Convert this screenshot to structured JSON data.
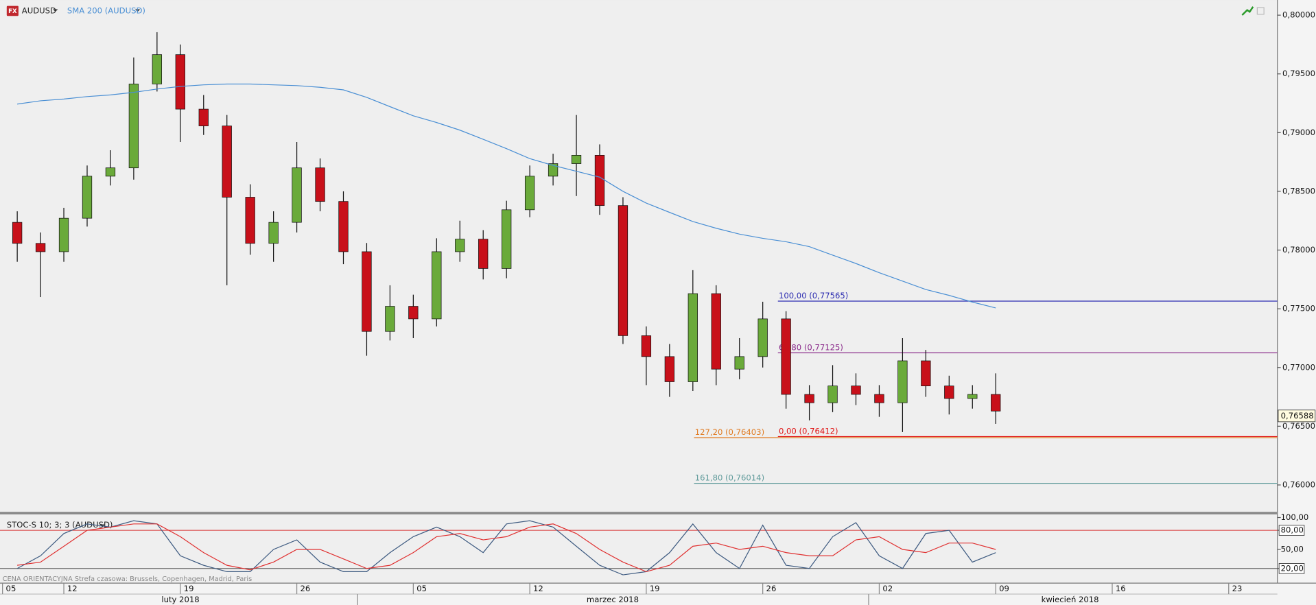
{
  "chart_data": [
    {
      "type": "candlestick",
      "badge": "FX",
      "title": "AUDUSD",
      "x": [
        3,
        4,
        5,
        6,
        7,
        8,
        9,
        10,
        11,
        12,
        13,
        14,
        15,
        16,
        17,
        18,
        19,
        20,
        21,
        22,
        23,
        24,
        25,
        26,
        27,
        28,
        29,
        30,
        31,
        32,
        33,
        34,
        35,
        36,
        37,
        38,
        39,
        40,
        41,
        42,
        43,
        44,
        45
      ],
      "open": [
        0.78236,
        0.78057,
        0.77986,
        0.78271,
        0.78629,
        0.787,
        0.79414,
        0.79664,
        0.792,
        0.79057,
        0.7845,
        0.78057,
        0.78236,
        0.787,
        0.78414,
        0.77986,
        0.77307,
        0.77521,
        0.77414,
        0.77986,
        0.78093,
        0.77843,
        0.78343,
        0.78629,
        0.78736,
        0.78807,
        0.78379,
        0.77271,
        0.77093,
        0.76879,
        0.77629,
        0.76986,
        0.77093,
        0.77414,
        0.76771,
        0.767,
        0.76843,
        0.76771,
        0.767,
        0.77057,
        0.76843,
        0.76736,
        0.76771
      ],
      "high": [
        0.7833,
        0.7815,
        0.7836,
        0.7872,
        0.7885,
        0.7964,
        0.79855,
        0.7975,
        0.7932,
        0.7915,
        0.7856,
        0.7833,
        0.7892,
        0.7878,
        0.785,
        0.7806,
        0.777,
        0.7762,
        0.781,
        0.7825,
        0.7817,
        0.7842,
        0.7872,
        0.7882,
        0.7915,
        0.789,
        0.7845,
        0.7735,
        0.772,
        0.77829,
        0.777,
        0.7725,
        0.7756,
        0.7748,
        0.7685,
        0.7702,
        0.7695,
        0.7685,
        0.7725,
        0.7715,
        0.7693,
        0.7685,
        0.7695
      ],
      "low": [
        0.779,
        0.776,
        0.779,
        0.782,
        0.7855,
        0.786,
        0.7935,
        0.7892,
        0.7898,
        0.777,
        0.7796,
        0.779,
        0.7815,
        0.7833,
        0.7788,
        0.771,
        0.7723,
        0.7725,
        0.7735,
        0.779,
        0.7775,
        0.7776,
        0.7828,
        0.7855,
        0.7846,
        0.783,
        0.772,
        0.7685,
        0.7675,
        0.768,
        0.7685,
        0.769,
        0.77,
        0.7665,
        0.7655,
        0.7662,
        0.7668,
        0.7658,
        0.7645,
        0.7675,
        0.766,
        0.7665,
        0.7652
      ],
      "close": [
        0.78057,
        0.77986,
        0.78271,
        0.78629,
        0.787,
        0.79414,
        0.79664,
        0.792,
        0.79057,
        0.7845,
        0.78057,
        0.78236,
        0.787,
        0.78414,
        0.77986,
        0.77307,
        0.77521,
        0.77414,
        0.77986,
        0.78093,
        0.77843,
        0.78343,
        0.78629,
        0.78736,
        0.78807,
        0.78379,
        0.77271,
        0.77093,
        0.76879,
        0.77629,
        0.76986,
        0.77093,
        0.77414,
        0.76771,
        0.767,
        0.76843,
        0.76771,
        0.767,
        0.77057,
        0.76843,
        0.76736,
        0.76771,
        0.76629
      ],
      "up_color": "#6aaa3a",
      "down_color": "#c8101a",
      "series": [
        {
          "name": "SMA 200 (AUDUSD)",
          "color": "#4a8fd4",
          "values": [
            0.79243,
            0.79271,
            0.79286,
            0.79307,
            0.79321,
            0.79343,
            0.79371,
            0.79393,
            0.79407,
            0.79414,
            0.79414,
            0.79407,
            0.794,
            0.79386,
            0.79364,
            0.793,
            0.79221,
            0.79143,
            0.79086,
            0.79021,
            0.78943,
            0.78864,
            0.78779,
            0.78721,
            0.78671,
            0.78621,
            0.785,
            0.784,
            0.78321,
            0.78243,
            0.78186,
            0.78136,
            0.781,
            0.78071,
            0.78029,
            0.77957,
            0.77886,
            0.77807,
            0.77736,
            0.77664,
            0.77614,
            0.77557,
            0.77507
          ]
        }
      ],
      "ylim": [
        0.75771,
        0.80129
      ],
      "yticks": [
        {
          "value": 0.76,
          "label": "0,76000"
        },
        {
          "value": 0.765,
          "label": "0,76500"
        },
        {
          "value": 0.77,
          "label": "0,77000"
        },
        {
          "value": 0.775,
          "label": "0,77500"
        },
        {
          "value": 0.78,
          "label": "0,78000"
        },
        {
          "value": 0.785,
          "label": "0,78500"
        },
        {
          "value": 0.79,
          "label": "0,79000"
        },
        {
          "value": 0.795,
          "label": "0,79500"
        },
        {
          "value": 0.8,
          "label": "0,80000"
        }
      ],
      "xlim": [
        2.26,
        57.09
      ],
      "xticks": [
        {
          "value": 0,
          "label": "05"
        },
        {
          "value": 5,
          "label": "12"
        },
        {
          "value": 10,
          "label": "19"
        },
        {
          "value": 15,
          "label": "26"
        },
        {
          "value": 20,
          "label": "05"
        },
        {
          "value": 25,
          "label": "12"
        },
        {
          "value": 30,
          "label": "19"
        },
        {
          "value": 35,
          "label": "26"
        },
        {
          "value": 40,
          "label": "02"
        },
        {
          "value": 45,
          "label": "09"
        },
        {
          "value": 50,
          "label": "16"
        },
        {
          "value": 55,
          "label": "23"
        }
      ],
      "months": [
        "luty 2018",
        "marzec 2018",
        "kwiecień 2018"
      ],
      "fib_levels": [
        {
          "label": "100,00 (0,77565)",
          "value": 0.77565,
          "x_start": 35.65,
          "color": "#2b2bb0"
        },
        {
          "label": "61,80 (0,77125)",
          "value": 0.77125,
          "x_start": 35.65,
          "color": "#8a2a8a"
        },
        {
          "label": "0,00 (0,76412)",
          "value": 0.76412,
          "x_start": 35.65,
          "color": "#e01010"
        },
        {
          "label": "127,20 (0,76403)",
          "value": 0.76403,
          "x_start": 32.05,
          "color": "#e07a20"
        },
        {
          "label": "161,80 (0,76014)",
          "value": 0.76014,
          "x_start": 32.05,
          "color": "#5f9a9a"
        }
      ],
      "last_price": {
        "value": 0.76588,
        "label": "0,76588"
      }
    },
    {
      "type": "line",
      "title": "STOC-S 10; 3; 3 (AUDUSD)",
      "x": [
        3,
        4,
        5,
        6,
        7,
        8,
        9,
        10,
        11,
        12,
        13,
        14,
        15,
        16,
        17,
        18,
        19,
        20,
        21,
        22,
        23,
        24,
        25,
        26,
        27,
        28,
        29,
        30,
        31,
        32,
        33,
        34,
        35,
        36,
        37,
        38,
        39,
        40,
        41,
        42,
        43,
        44,
        45
      ],
      "series": [
        {
          "color": "#3d5a80",
          "values": [
            20,
            40,
            75,
            90,
            85,
            95,
            90,
            40,
            25,
            15,
            15,
            50,
            65,
            30,
            15,
            15,
            45,
            70,
            85,
            70,
            45,
            90,
            95,
            85,
            55,
            25,
            10,
            15,
            45,
            90,
            45,
            20,
            88,
            25,
            20,
            70,
            92,
            40,
            20,
            75,
            80,
            30,
            45
          ]
        },
        {
          "color": "#e03030",
          "values": [
            25,
            30,
            55,
            80,
            85,
            90,
            90,
            70,
            45,
            25,
            18,
            30,
            50,
            50,
            35,
            20,
            25,
            45,
            70,
            75,
            65,
            70,
            85,
            90,
            75,
            50,
            30,
            15,
            25,
            55,
            60,
            50,
            55,
            45,
            40,
            40,
            65,
            70,
            50,
            45,
            60,
            60,
            50
          ]
        }
      ],
      "ylim": [
        -3,
        105
      ],
      "yticks": [
        {
          "value": 100,
          "label": "100,00"
        },
        {
          "value": 80,
          "label": "80,00"
        },
        {
          "value": 50,
          "label": "50,00"
        },
        {
          "value": 20,
          "label": "20,00"
        }
      ],
      "levels": [
        {
          "value": 80,
          "color": "#d83030"
        },
        {
          "value": 20,
          "color": "#333333"
        }
      ],
      "footnote": "CENA ORIENTACYJNA   Strefa czasowa: Brussels, Copenhagen, Madrid, Paris"
    }
  ]
}
